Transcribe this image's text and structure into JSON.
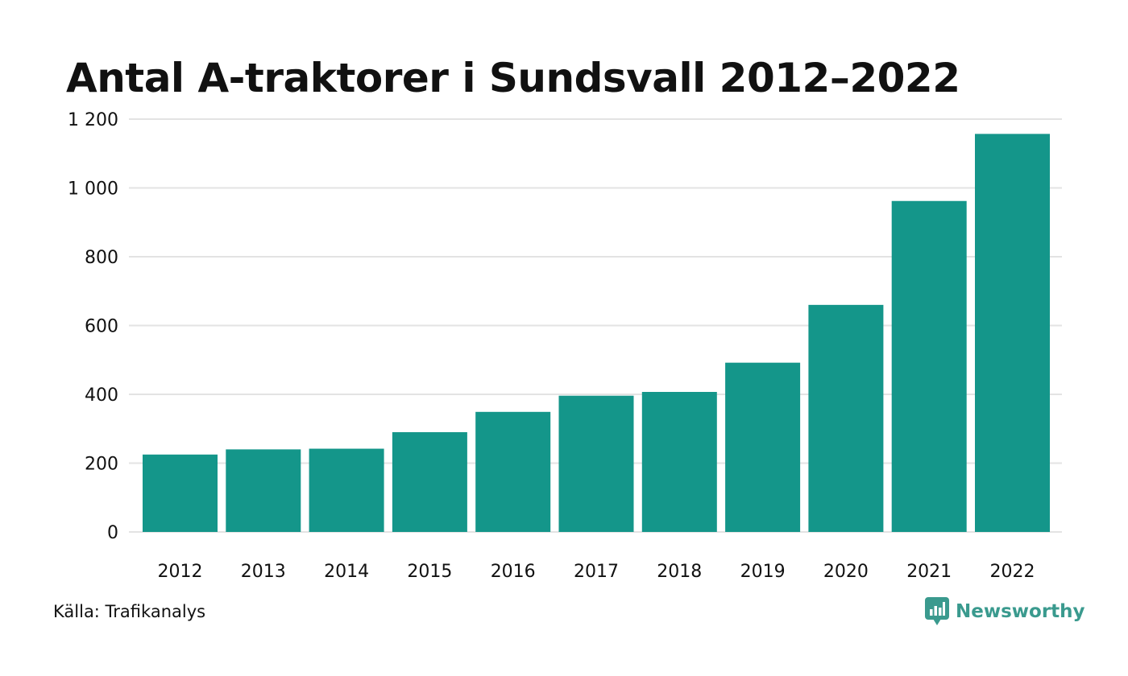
{
  "chart_data": {
    "type": "bar",
    "title": "Antal A-traktorer i Sundsvall 2012–2022",
    "xlabel": "",
    "ylabel": "",
    "categories": [
      "2012",
      "2013",
      "2014",
      "2015",
      "2016",
      "2017",
      "2018",
      "2019",
      "2020",
      "2021",
      "2022"
    ],
    "values": [
      225,
      240,
      242,
      290,
      349,
      396,
      407,
      492,
      660,
      962,
      1157
    ],
    "ylim": [
      0,
      1200
    ],
    "yticks": [
      0,
      200,
      400,
      600,
      800,
      1000,
      1200
    ],
    "ytick_labels": [
      "0",
      "200",
      "400",
      "600",
      "800",
      "1 000",
      "1 200"
    ],
    "grid": true,
    "legend": "none",
    "bar_color": "#14968a",
    "grid_color": "#e3e3e3"
  },
  "footer": {
    "source": "Källa: Trafikanalys",
    "brand": "Newsworthy",
    "brand_icon": "newsworthy-logo-icon",
    "brand_color": "#3a9a8e"
  }
}
